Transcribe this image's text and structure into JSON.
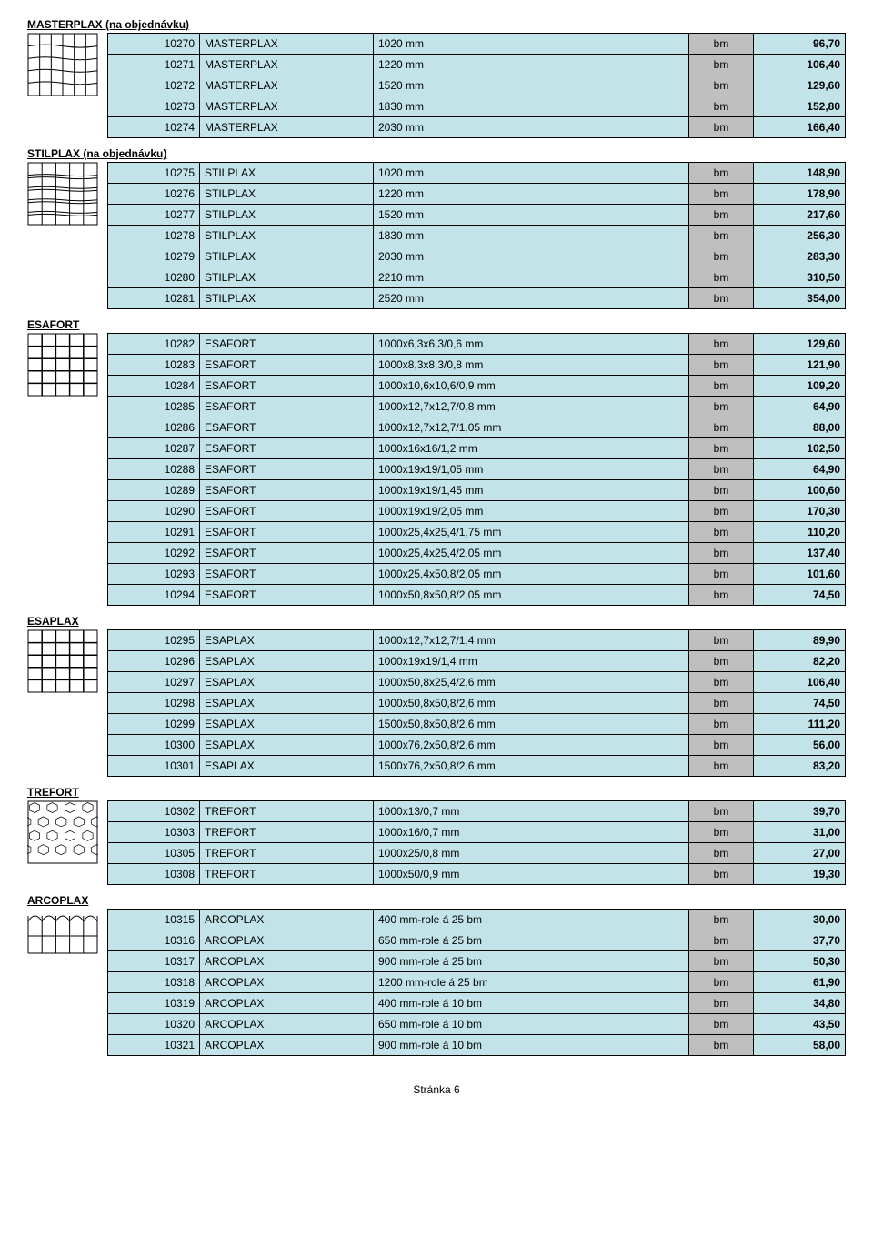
{
  "footer": "Stránka 6",
  "sections": [
    {
      "title": "MASTERPLAX (na objednávku)",
      "icon": "masterplax",
      "rows": [
        {
          "code": "10270",
          "name": "MASTERPLAX",
          "spec": "1020 mm",
          "unit": "bm",
          "price": "96,70"
        },
        {
          "code": "10271",
          "name": "MASTERPLAX",
          "spec": "1220 mm",
          "unit": "bm",
          "price": "106,40"
        },
        {
          "code": "10272",
          "name": "MASTERPLAX",
          "spec": "1520 mm",
          "unit": "bm",
          "price": "129,60"
        },
        {
          "code": "10273",
          "name": "MASTERPLAX",
          "spec": "1830 mm",
          "unit": "bm",
          "price": "152,80"
        },
        {
          "code": "10274",
          "name": "MASTERPLAX",
          "spec": "2030 mm",
          "unit": "bm",
          "price": "166,40"
        }
      ]
    },
    {
      "title": "STILPLAX (na objednávku)",
      "icon": "stilplax",
      "rows": [
        {
          "code": "10275",
          "name": "STILPLAX",
          "spec": "1020 mm",
          "unit": "bm",
          "price": "148,90"
        },
        {
          "code": "10276",
          "name": "STILPLAX",
          "spec": "1220 mm",
          "unit": "bm",
          "price": "178,90"
        },
        {
          "code": "10277",
          "name": "STILPLAX",
          "spec": "1520 mm",
          "unit": "bm",
          "price": "217,60"
        },
        {
          "code": "10278",
          "name": "STILPLAX",
          "spec": "1830 mm",
          "unit": "bm",
          "price": "256,30"
        },
        {
          "code": "10279",
          "name": "STILPLAX",
          "spec": "2030 mm",
          "unit": "bm",
          "price": "283,30"
        },
        {
          "code": "10280",
          "name": "STILPLAX",
          "spec": "2210 mm",
          "unit": "bm",
          "price": "310,50"
        },
        {
          "code": "10281",
          "name": "STILPLAX",
          "spec": "2520 mm",
          "unit": "bm",
          "price": "354,00"
        }
      ]
    },
    {
      "title": "ESAFORT",
      "icon": "esafort",
      "rows": [
        {
          "code": "10282",
          "name": "ESAFORT",
          "spec": "1000x6,3x6,3/0,6 mm",
          "unit": "bm",
          "price": "129,60"
        },
        {
          "code": "10283",
          "name": "ESAFORT",
          "spec": "1000x8,3x8,3/0,8 mm",
          "unit": "bm",
          "price": "121,90"
        },
        {
          "code": "10284",
          "name": "ESAFORT",
          "spec": "1000x10,6x10,6/0,9 mm",
          "unit": "bm",
          "price": "109,20"
        },
        {
          "code": "10285",
          "name": "ESAFORT",
          "spec": "1000x12,7x12,7/0,8 mm",
          "unit": "bm",
          "price": "64,90"
        },
        {
          "code": "10286",
          "name": "ESAFORT",
          "spec": "1000x12,7x12,7/1,05 mm",
          "unit": "bm",
          "price": "88,00"
        },
        {
          "code": "10287",
          "name": "ESAFORT",
          "spec": "1000x16x16/1,2 mm",
          "unit": "bm",
          "price": "102,50"
        },
        {
          "code": "10288",
          "name": "ESAFORT",
          "spec": "1000x19x19/1,05 mm",
          "unit": "bm",
          "price": "64,90"
        },
        {
          "code": "10289",
          "name": "ESAFORT",
          "spec": "1000x19x19/1,45 mm",
          "unit": "bm",
          "price": "100,60"
        },
        {
          "code": "10290",
          "name": "ESAFORT",
          "spec": "1000x19x19/2,05 mm",
          "unit": "bm",
          "price": "170,30"
        },
        {
          "code": "10291",
          "name": "ESAFORT",
          "spec": "1000x25,4x25,4/1,75 mm",
          "unit": "bm",
          "price": "110,20"
        },
        {
          "code": "10292",
          "name": "ESAFORT",
          "spec": "1000x25,4x25,4/2,05 mm",
          "unit": "bm",
          "price": "137,40"
        },
        {
          "code": "10293",
          "name": "ESAFORT",
          "spec": "1000x25,4x50,8/2,05 mm",
          "unit": "bm",
          "price": "101,60"
        },
        {
          "code": "10294",
          "name": "ESAFORT",
          "spec": "1000x50,8x50,8/2,05 mm",
          "unit": "bm",
          "price": "74,50"
        }
      ]
    },
    {
      "title": "ESAPLAX",
      "icon": "esaplax",
      "rows": [
        {
          "code": "10295",
          "name": "ESAPLAX",
          "spec": "1000x12,7x12,7/1,4 mm",
          "unit": "bm",
          "price": "89,90"
        },
        {
          "code": "10296",
          "name": "ESAPLAX",
          "spec": "1000x19x19/1,4 mm",
          "unit": "bm",
          "price": "82,20"
        },
        {
          "code": "10297",
          "name": "ESAPLAX",
          "spec": "1000x50,8x25,4/2,6 mm",
          "unit": "bm",
          "price": "106,40"
        },
        {
          "code": "10298",
          "name": "ESAPLAX",
          "spec": "1000x50,8x50,8/2,6 mm",
          "unit": "bm",
          "price": "74,50"
        },
        {
          "code": "10299",
          "name": "ESAPLAX",
          "spec": "1500x50,8x50,8/2,6 mm",
          "unit": "bm",
          "price": "111,20"
        },
        {
          "code": "10300",
          "name": "ESAPLAX",
          "spec": "1000x76,2x50,8/2,6 mm",
          "unit": "bm",
          "price": "56,00"
        },
        {
          "code": "10301",
          "name": "ESAPLAX",
          "spec": "1500x76,2x50,8/2,6 mm",
          "unit": "bm",
          "price": "83,20"
        }
      ]
    },
    {
      "title": "TREFORT",
      "icon": "trefort",
      "rows": [
        {
          "code": "10302",
          "name": "TREFORT",
          "spec": "1000x13/0,7 mm",
          "unit": "bm",
          "price": "39,70"
        },
        {
          "code": "10303",
          "name": "TREFORT",
          "spec": "1000x16/0,7 mm",
          "unit": "bm",
          "price": "31,00"
        },
        {
          "code": "10305",
          "name": "TREFORT",
          "spec": "1000x25/0,8 mm",
          "unit": "bm",
          "price": "27,00"
        },
        {
          "code": "10308",
          "name": "TREFORT",
          "spec": "1000x50/0,9 mm",
          "unit": "bm",
          "price": "19,30"
        }
      ]
    },
    {
      "title": "ARCOPLAX",
      "icon": "arcoplax",
      "rows": [
        {
          "code": "10315",
          "name": "ARCOPLAX",
          "spec": "400 mm-role á 25 bm",
          "unit": "bm",
          "price": "30,00"
        },
        {
          "code": "10316",
          "name": "ARCOPLAX",
          "spec": "650 mm-role á 25 bm",
          "unit": "bm",
          "price": "37,70"
        },
        {
          "code": "10317",
          "name": "ARCOPLAX",
          "spec": "900 mm-role á 25 bm",
          "unit": "bm",
          "price": "50,30"
        },
        {
          "code": "10318",
          "name": "ARCOPLAX",
          "spec": "1200 mm-role á 25 bm",
          "unit": "bm",
          "price": "61,90"
        },
        {
          "code": "10319",
          "name": "ARCOPLAX",
          "spec": "400 mm-role á 10 bm",
          "unit": "bm",
          "price": "34,80"
        },
        {
          "code": "10320",
          "name": "ARCOPLAX",
          "spec": "650 mm-role á 10 bm",
          "unit": "bm",
          "price": "43,50"
        },
        {
          "code": "10321",
          "name": "ARCOPLAX",
          "spec": "900 mm-role á 10 bm",
          "unit": "bm",
          "price": "58,00"
        }
      ]
    }
  ]
}
